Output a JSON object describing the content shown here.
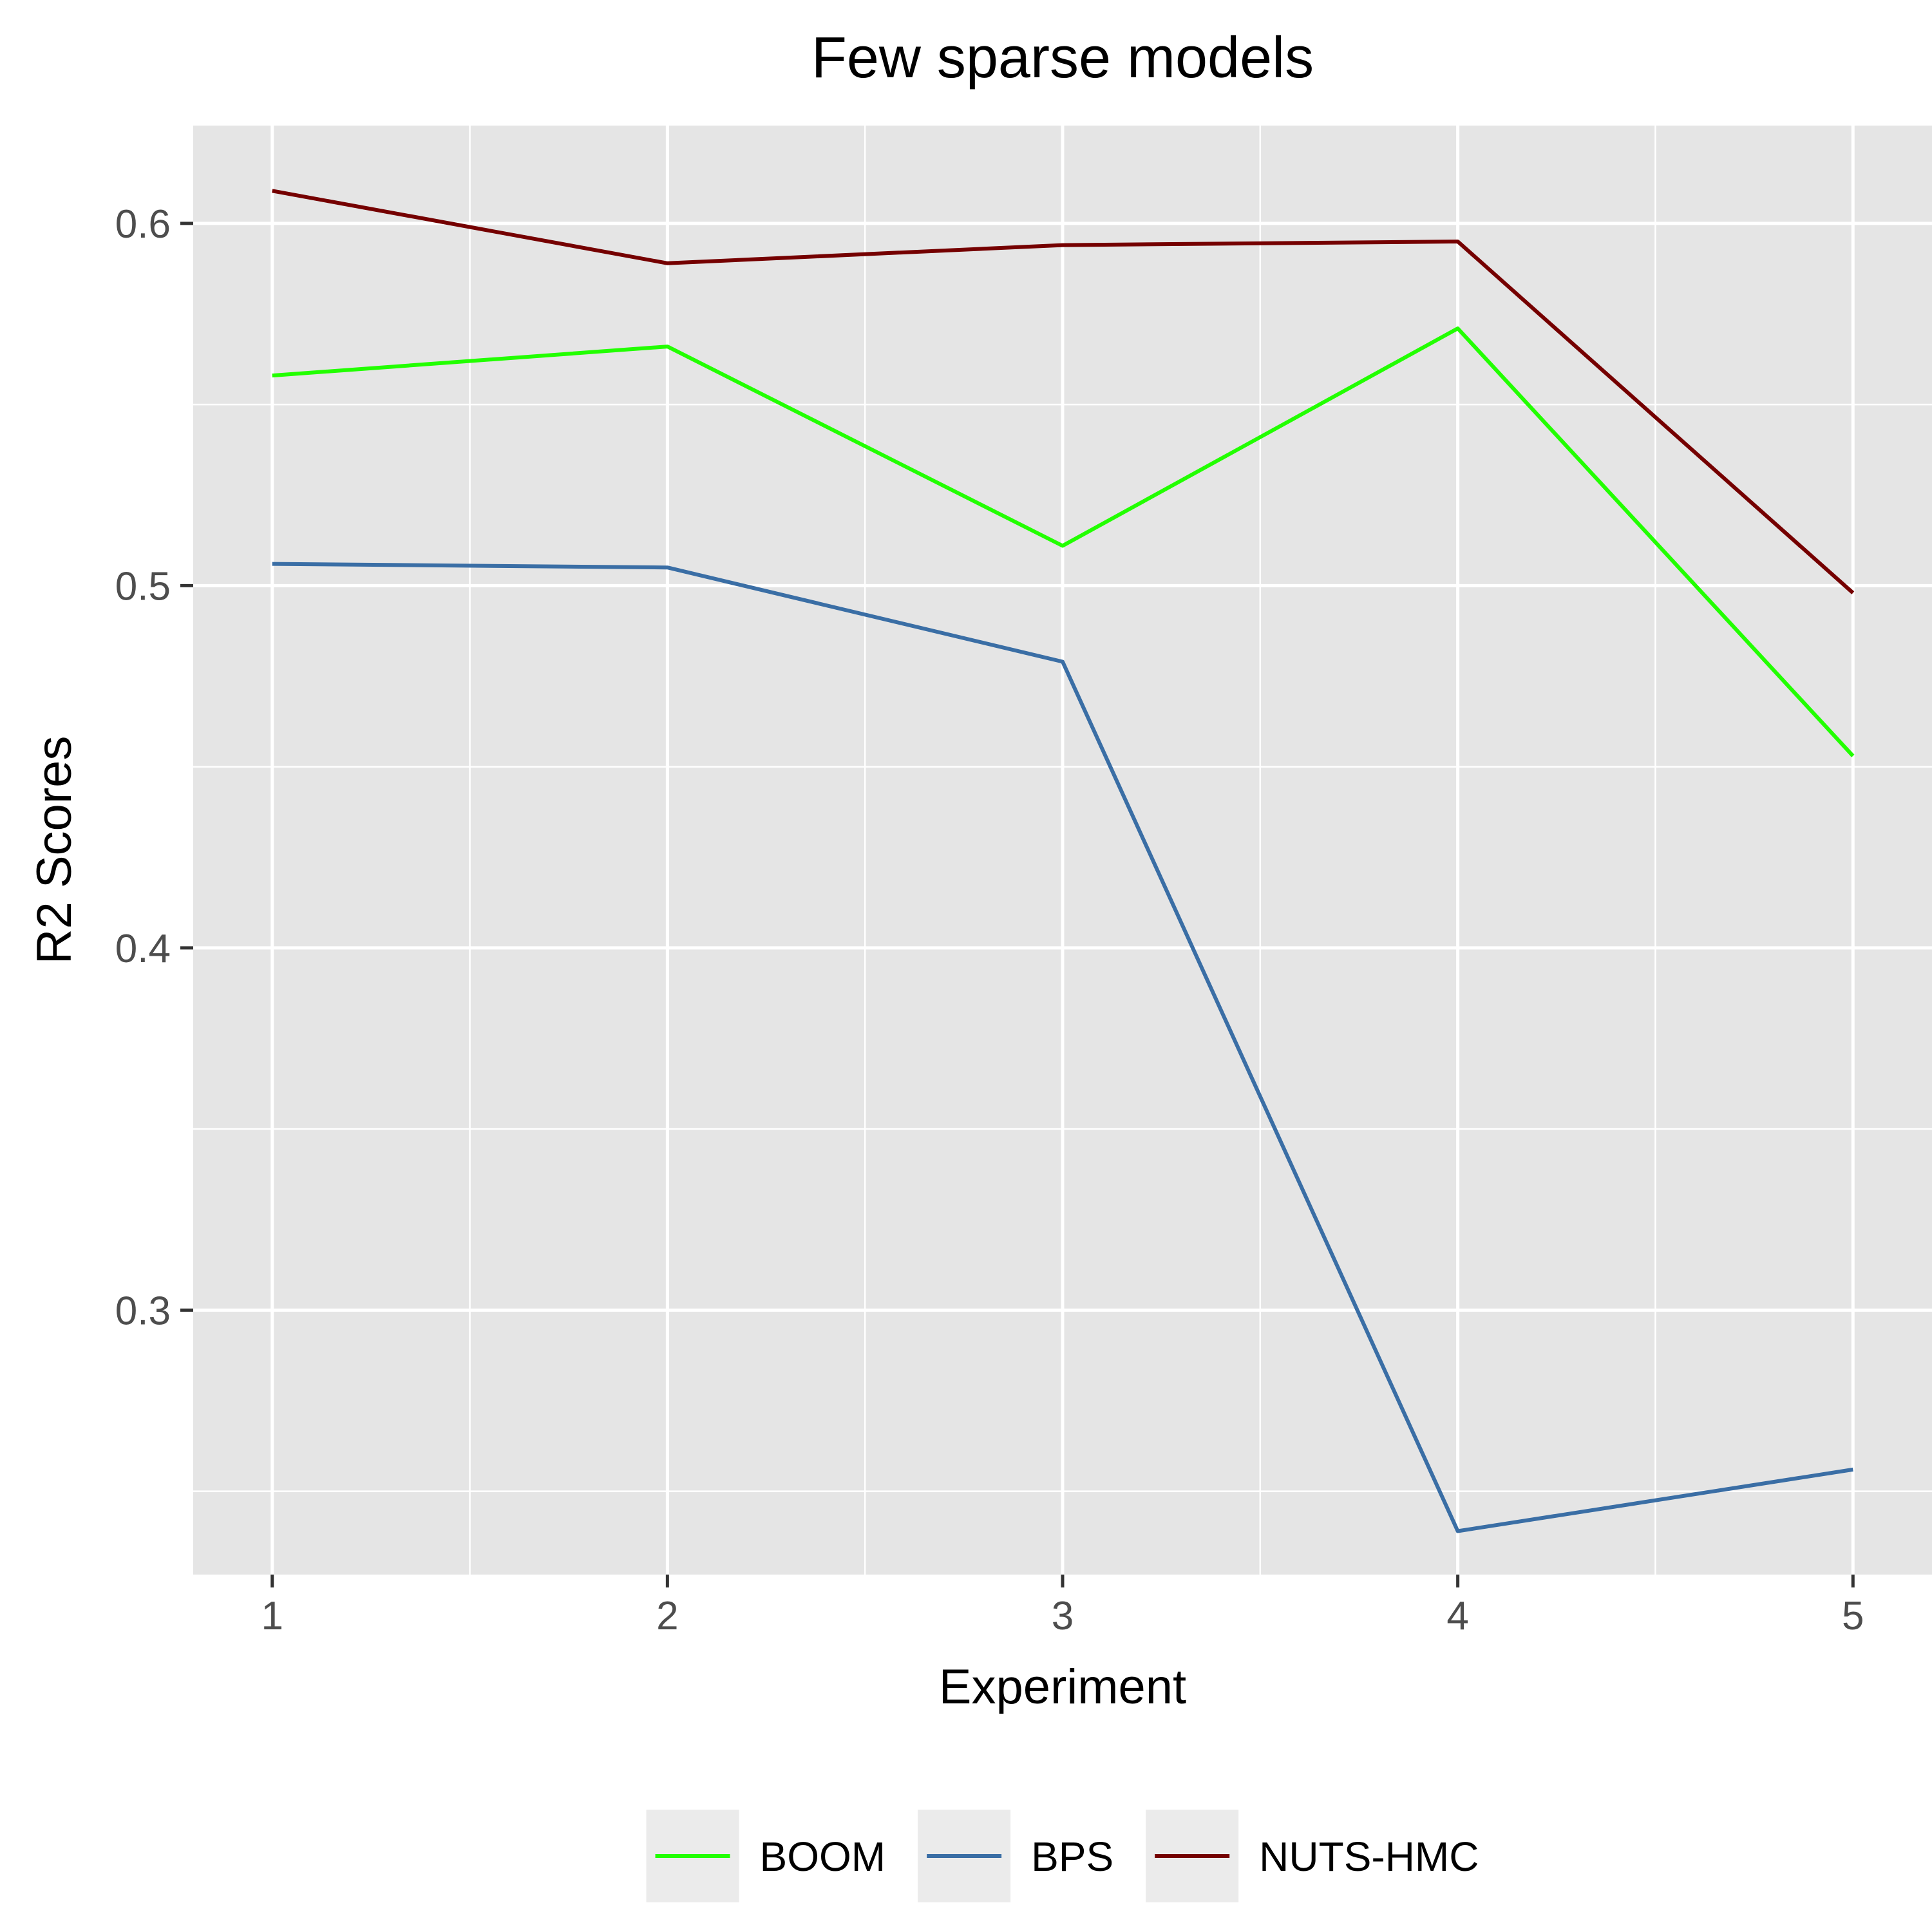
{
  "chart_data": {
    "type": "line",
    "title": "Few sparse models",
    "xlabel": "Experiment",
    "ylabel": "R2 Scores",
    "x": [
      1,
      2,
      3,
      4,
      5
    ],
    "xlim": [
      0.8,
      5.2
    ],
    "ylim": [
      0.227,
      0.627
    ],
    "x_ticks": [
      1,
      2,
      3,
      4,
      5
    ],
    "y_ticks": [
      0.3,
      0.4,
      0.5,
      0.6
    ],
    "y_tick_labels": [
      "0.3",
      "0.4",
      "0.5",
      "0.6"
    ],
    "grid": true,
    "legend_position": "bottom",
    "series": [
      {
        "name": "BOOM",
        "color": "#22ff00",
        "values": [
          0.558,
          0.566,
          0.511,
          0.571,
          0.453
        ]
      },
      {
        "name": "BPS",
        "color": "#3a6ea5",
        "values": [
          0.506,
          0.505,
          0.479,
          0.239,
          0.256
        ]
      },
      {
        "name": "NUTS-HMC",
        "color": "#750000",
        "values": [
          0.609,
          0.589,
          0.594,
          0.595,
          0.498
        ]
      }
    ]
  }
}
